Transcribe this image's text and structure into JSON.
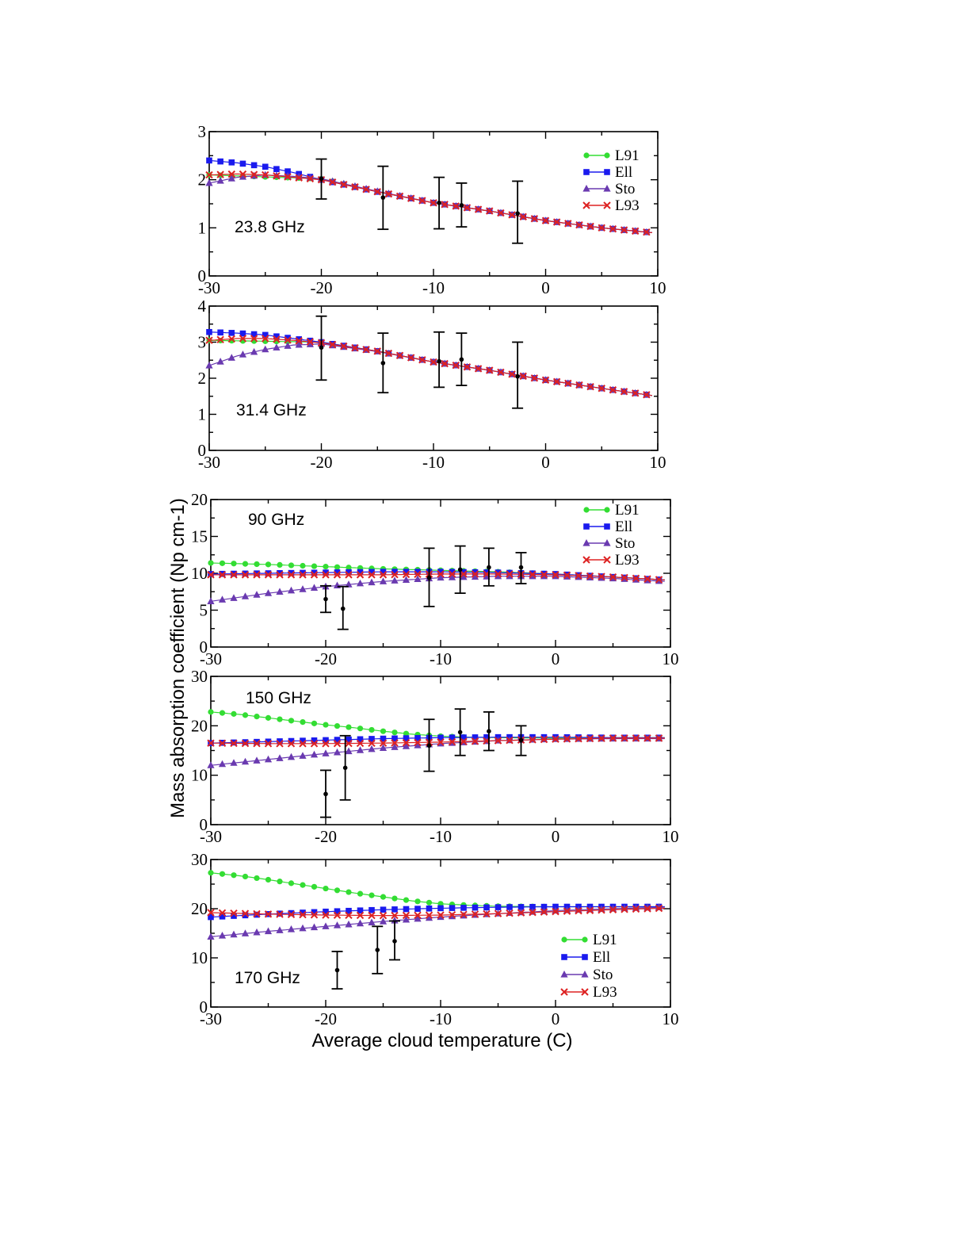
{
  "figure": {
    "xlabel": "Average cloud temperature (C)",
    "ylabel": "Mass absorption coefficient (Np cm-1)"
  },
  "chart_data": [
    {
      "type": "line",
      "panel_label": "23.8 GHz",
      "xlim": [
        -30,
        10
      ],
      "ylim": [
        0,
        3
      ],
      "xticks": [
        "-30",
        "-20",
        "-10",
        "0",
        "10"
      ],
      "yticks": [
        "0",
        "1",
        "2",
        "3"
      ],
      "legend": true,
      "legend_position": "top-right",
      "series": [
        {
          "name": "L91",
          "color": "#33dd33",
          "marker": "circle",
          "x": [
            -30,
            -20,
            -15,
            -10,
            -5,
            0,
            5,
            9.5
          ],
          "y": [
            2.1,
            2.02,
            1.75,
            1.52,
            1.35,
            1.15,
            1.0,
            0.9
          ]
        },
        {
          "name": "Ell",
          "color": "#1a1aee",
          "marker": "square",
          "x": [
            -30,
            -27.5,
            -25,
            -22.5,
            -20,
            -15,
            -10,
            -5,
            0,
            5,
            9.5
          ],
          "y": [
            2.4,
            2.35,
            2.27,
            2.15,
            2.0,
            1.75,
            1.52,
            1.35,
            1.15,
            1.0,
            0.9
          ]
        },
        {
          "name": "Sto",
          "color": "#6a3ab0",
          "marker": "triangle",
          "x": [
            -30,
            -27.5,
            -25,
            -22.5,
            -20,
            -15,
            -10,
            -5,
            0,
            5,
            9.5
          ],
          "y": [
            1.93,
            2.05,
            2.1,
            2.07,
            2.02,
            1.76,
            1.52,
            1.35,
            1.15,
            1.0,
            0.9
          ]
        },
        {
          "name": "L93",
          "color": "#dd2222",
          "marker": "x",
          "x": [
            -30,
            -27.5,
            -25,
            -22.5,
            -20,
            -15,
            -10,
            -5,
            0,
            5,
            9.5
          ],
          "y": [
            2.1,
            2.12,
            2.1,
            2.05,
            2.0,
            1.75,
            1.52,
            1.35,
            1.15,
            1.0,
            0.9
          ]
        }
      ],
      "observations": [
        {
          "x": -20.0,
          "y": 2.02,
          "lo": 1.6,
          "hi": 2.43
        },
        {
          "x": -14.5,
          "y": 1.63,
          "lo": 0.97,
          "hi": 2.28
        },
        {
          "x": -9.5,
          "y": 1.52,
          "lo": 0.98,
          "hi": 2.05
        },
        {
          "x": -7.5,
          "y": 1.47,
          "lo": 1.02,
          "hi": 1.93
        },
        {
          "x": -2.5,
          "y": 1.3,
          "lo": 0.68,
          "hi": 1.97
        }
      ]
    },
    {
      "type": "line",
      "panel_label": "31.4 GHz",
      "xlim": [
        -30,
        10
      ],
      "ylim": [
        0,
        4
      ],
      "xticks": [
        "-30",
        "-20",
        "-10",
        "0",
        "10"
      ],
      "yticks": [
        "0",
        "1",
        "2",
        "3",
        "4"
      ],
      "legend": false,
      "series": [
        {
          "name": "L91",
          "color": "#33dd33",
          "marker": "circle",
          "x": [
            -30,
            -20,
            -15,
            -10,
            -5,
            0,
            5,
            9.5
          ],
          "y": [
            3.05,
            3.0,
            2.75,
            2.45,
            2.22,
            1.95,
            1.72,
            1.52
          ]
        },
        {
          "name": "Ell",
          "color": "#1a1aee",
          "marker": "square",
          "x": [
            -30,
            -27.5,
            -25,
            -22.5,
            -20,
            -15,
            -10,
            -5,
            0,
            5,
            9.5
          ],
          "y": [
            3.28,
            3.25,
            3.2,
            3.1,
            3.0,
            2.75,
            2.45,
            2.22,
            1.95,
            1.72,
            1.52
          ]
        },
        {
          "name": "Sto",
          "color": "#6a3ab0",
          "marker": "triangle",
          "x": [
            -30,
            -27.5,
            -25,
            -22.5,
            -20,
            -15,
            -10,
            -5,
            0,
            5,
            9.5
          ],
          "y": [
            2.35,
            2.62,
            2.8,
            2.92,
            2.95,
            2.74,
            2.45,
            2.22,
            1.95,
            1.72,
            1.52
          ]
        },
        {
          "name": "L93",
          "color": "#dd2222",
          "marker": "x",
          "x": [
            -30,
            -27.5,
            -25,
            -22.5,
            -20,
            -15,
            -10,
            -5,
            0,
            5,
            9.5
          ],
          "y": [
            3.05,
            3.1,
            3.1,
            3.05,
            2.98,
            2.75,
            2.45,
            2.22,
            1.95,
            1.72,
            1.52
          ]
        }
      ],
      "observations": [
        {
          "x": -20.0,
          "y": 2.85,
          "lo": 1.95,
          "hi": 3.72
        },
        {
          "x": -14.5,
          "y": 2.42,
          "lo": 1.6,
          "hi": 3.25
        },
        {
          "x": -9.5,
          "y": 2.47,
          "lo": 1.75,
          "hi": 3.28
        },
        {
          "x": -7.5,
          "y": 2.52,
          "lo": 1.8,
          "hi": 3.25
        },
        {
          "x": -2.5,
          "y": 2.05,
          "lo": 1.17,
          "hi": 3.0
        }
      ]
    },
    {
      "type": "line",
      "panel_label": "90 GHz",
      "xlim": [
        -30,
        10
      ],
      "ylim": [
        0,
        20
      ],
      "xticks": [
        "-30",
        "-20",
        "-10",
        "0",
        "10"
      ],
      "yticks": [
        "0",
        "5",
        "10",
        "15",
        "20"
      ],
      "legend": true,
      "legend_position": "top-right",
      "series": [
        {
          "name": "L91",
          "color": "#33dd33",
          "marker": "circle",
          "x": [
            -30,
            -25,
            -20,
            -15,
            -10,
            -5,
            0,
            5,
            9.5
          ],
          "y": [
            11.4,
            11.2,
            10.9,
            10.6,
            10.4,
            10.2,
            9.9,
            9.5,
            9.1
          ]
        },
        {
          "name": "Ell",
          "color": "#1a1aee",
          "marker": "square",
          "x": [
            -30,
            -25,
            -20,
            -15,
            -10,
            -5,
            0,
            5,
            9.5
          ],
          "y": [
            9.9,
            10.0,
            10.1,
            10.2,
            10.2,
            10.1,
            9.9,
            9.5,
            9.1
          ]
        },
        {
          "name": "Sto",
          "color": "#6a3ab0",
          "marker": "triangle",
          "x": [
            -30,
            -25,
            -20,
            -15,
            -10,
            -5,
            0,
            5,
            9.5
          ],
          "y": [
            6.2,
            7.3,
            8.2,
            8.9,
            9.4,
            9.6,
            9.6,
            9.3,
            8.9
          ]
        },
        {
          "name": "L93",
          "color": "#dd2222",
          "marker": "x",
          "x": [
            -30,
            -25,
            -20,
            -15,
            -10,
            -5,
            0,
            5,
            9.5
          ],
          "y": [
            9.8,
            9.8,
            9.8,
            9.8,
            9.9,
            9.9,
            9.8,
            9.5,
            9.1
          ]
        }
      ],
      "observations": [
        {
          "x": -20.0,
          "y": 6.5,
          "lo": 4.7,
          "hi": 8.3
        },
        {
          "x": -18.5,
          "y": 5.2,
          "lo": 2.4,
          "hi": 8.2
        },
        {
          "x": -11.0,
          "y": 9.4,
          "lo": 5.5,
          "hi": 13.4
        },
        {
          "x": -8.3,
          "y": 10.5,
          "lo": 7.3,
          "hi": 13.7
        },
        {
          "x": -5.8,
          "y": 10.8,
          "lo": 8.3,
          "hi": 13.4
        },
        {
          "x": -3.0,
          "y": 10.8,
          "lo": 8.6,
          "hi": 12.8
        }
      ]
    },
    {
      "type": "line",
      "panel_label": "150 GHz",
      "xlim": [
        -30,
        10
      ],
      "ylim": [
        0,
        30
      ],
      "xticks": [
        "-30",
        "-20",
        "-10",
        "0",
        "10"
      ],
      "yticks": [
        "0",
        "10",
        "20",
        "30"
      ],
      "legend": false,
      "series": [
        {
          "name": "L91",
          "color": "#33dd33",
          "marker": "circle",
          "x": [
            -30,
            -27.5,
            -25,
            -22.5,
            -20,
            -17.5,
            -15,
            -12.5,
            -10,
            -7.5,
            -5,
            0,
            5,
            9.5
          ],
          "y": [
            22.8,
            22.3,
            21.6,
            20.9,
            20.2,
            19.6,
            18.9,
            18.3,
            17.9,
            17.7,
            17.6,
            17.5,
            17.6,
            17.6
          ]
        },
        {
          "name": "Ell",
          "color": "#1a1aee",
          "marker": "square",
          "x": [
            -30,
            -25,
            -20,
            -15,
            -10,
            -5,
            0,
            5,
            9.5
          ],
          "y": [
            16.5,
            16.8,
            17.1,
            17.4,
            17.6,
            17.7,
            17.7,
            17.6,
            17.6
          ]
        },
        {
          "name": "Sto",
          "color": "#6a3ab0",
          "marker": "triangle",
          "x": [
            -30,
            -25,
            -20,
            -15,
            -10,
            -5,
            0,
            5,
            9.5
          ],
          "y": [
            12.0,
            13.2,
            14.4,
            15.5,
            16.4,
            17.0,
            17.3,
            17.4,
            17.4
          ]
        },
        {
          "name": "L93",
          "color": "#dd2222",
          "marker": "x",
          "x": [
            -30,
            -25,
            -20,
            -15,
            -10,
            -5,
            0,
            5,
            9.5
          ],
          "y": [
            16.5,
            16.4,
            16.4,
            16.5,
            16.7,
            17.0,
            17.3,
            17.5,
            17.5
          ]
        }
      ],
      "observations": [
        {
          "x": -20.0,
          "y": 6.2,
          "lo": 1.5,
          "hi": 11.0
        },
        {
          "x": -18.3,
          "y": 11.5,
          "lo": 5.0,
          "hi": 18.0
        },
        {
          "x": -11.0,
          "y": 16.0,
          "lo": 10.8,
          "hi": 21.3
        },
        {
          "x": -8.3,
          "y": 18.7,
          "lo": 14.0,
          "hi": 23.4
        },
        {
          "x": -5.8,
          "y": 18.9,
          "lo": 15.0,
          "hi": 22.8
        },
        {
          "x": -3.0,
          "y": 17.1,
          "lo": 14.0,
          "hi": 20.0
        }
      ]
    },
    {
      "type": "line",
      "panel_label": "170 GHz",
      "xlim": [
        -30,
        10
      ],
      "ylim": [
        0,
        30
      ],
      "xticks": [
        "-30",
        "-20",
        "-10",
        "0",
        "10"
      ],
      "yticks": [
        "0",
        "10",
        "20",
        "30"
      ],
      "legend": true,
      "legend_position": "bottom-right",
      "series": [
        {
          "name": "L91",
          "color": "#33dd33",
          "marker": "circle",
          "x": [
            -30,
            -27.5,
            -25,
            -22.5,
            -20,
            -17.5,
            -15,
            -12.5,
            -10,
            -7.5,
            -5,
            0,
            5,
            9.5
          ],
          "y": [
            27.3,
            26.7,
            25.9,
            25.0,
            24.1,
            23.2,
            22.4,
            21.6,
            21.0,
            20.7,
            20.5,
            20.4,
            20.4,
            20.4
          ]
        },
        {
          "name": "Ell",
          "color": "#1a1aee",
          "marker": "square",
          "x": [
            -30,
            -25,
            -20,
            -15,
            -10,
            -5,
            0,
            5,
            9.5
          ],
          "y": [
            18.3,
            18.9,
            19.4,
            19.8,
            20.1,
            20.3,
            20.4,
            20.4,
            20.4
          ]
        },
        {
          "name": "Sto",
          "color": "#6a3ab0",
          "marker": "triangle",
          "x": [
            -30,
            -25,
            -20,
            -15,
            -10,
            -5,
            0,
            5,
            9.5
          ],
          "y": [
            14.3,
            15.4,
            16.4,
            17.4,
            18.3,
            19.0,
            19.6,
            20.0,
            20.3
          ]
        },
        {
          "name": "L93",
          "color": "#dd2222",
          "marker": "x",
          "x": [
            -30,
            -25,
            -20,
            -15,
            -10,
            -5,
            0,
            5,
            9.5
          ],
          "y": [
            19.2,
            18.9,
            18.7,
            18.6,
            18.7,
            19.0,
            19.4,
            19.8,
            20.1
          ]
        }
      ],
      "observations": [
        {
          "x": -19.0,
          "y": 7.5,
          "lo": 3.7,
          "hi": 11.3
        },
        {
          "x": -15.5,
          "y": 11.6,
          "lo": 6.8,
          "hi": 16.4
        },
        {
          "x": -14.0,
          "y": 13.4,
          "lo": 9.6,
          "hi": 17.5
        }
      ]
    }
  ]
}
